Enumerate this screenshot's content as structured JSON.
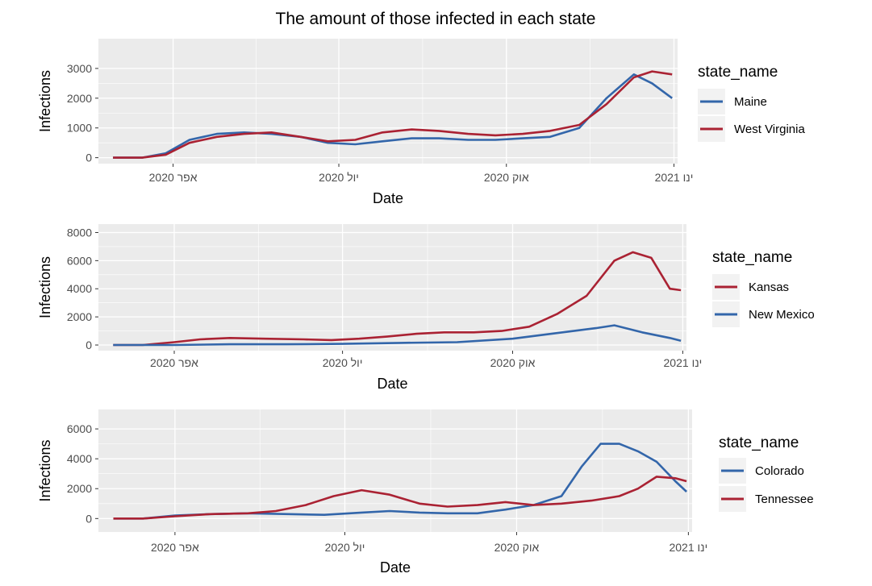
{
  "title": "The amount of those infected in each state",
  "x_tick_labels": [
    "2020 אפר",
    "2020 יול",
    "2020 אוק",
    "2021 ינו"
  ],
  "colors": {
    "blue": "#3366aa",
    "red": "#aa2233",
    "panel_bg": "#ebebeb",
    "grid": "#ffffff"
  },
  "chart_data": [
    {
      "type": "line",
      "xlabel": "Date",
      "ylabel": "Infections",
      "x_range": [
        "2020-02-20",
        "2021-01-03"
      ],
      "ylim": [
        -200,
        4000
      ],
      "y_ticks": [
        0,
        1000,
        2000,
        3000
      ],
      "legend": {
        "title": "state_name",
        "position": "right"
      },
      "series": [
        {
          "name": "Maine",
          "color": "#3366aa",
          "points": [
            [
              "2020-02-28",
              0
            ],
            [
              "2020-03-15",
              0
            ],
            [
              "2020-03-28",
              150
            ],
            [
              "2020-04-10",
              600
            ],
            [
              "2020-04-25",
              800
            ],
            [
              "2020-05-10",
              850
            ],
            [
              "2020-05-25",
              800
            ],
            [
              "2020-06-10",
              700
            ],
            [
              "2020-06-25",
              500
            ],
            [
              "2020-07-10",
              450
            ],
            [
              "2020-07-25",
              550
            ],
            [
              "2020-08-10",
              650
            ],
            [
              "2020-08-25",
              650
            ],
            [
              "2020-09-10",
              600
            ],
            [
              "2020-09-25",
              600
            ],
            [
              "2020-10-10",
              650
            ],
            [
              "2020-10-25",
              700
            ],
            [
              "2020-11-10",
              1000
            ],
            [
              "2020-11-25",
              2000
            ],
            [
              "2020-12-10",
              2800
            ],
            [
              "2020-12-20",
              2500
            ],
            [
              "2020-12-31",
              2000
            ]
          ]
        },
        {
          "name": "West Virginia",
          "color": "#aa2233",
          "points": [
            [
              "2020-02-28",
              0
            ],
            [
              "2020-03-15",
              0
            ],
            [
              "2020-03-28",
              100
            ],
            [
              "2020-04-10",
              500
            ],
            [
              "2020-04-25",
              700
            ],
            [
              "2020-05-10",
              800
            ],
            [
              "2020-05-25",
              850
            ],
            [
              "2020-06-10",
              700
            ],
            [
              "2020-06-25",
              550
            ],
            [
              "2020-07-10",
              600
            ],
            [
              "2020-07-25",
              850
            ],
            [
              "2020-08-10",
              950
            ],
            [
              "2020-08-25",
              900
            ],
            [
              "2020-09-10",
              800
            ],
            [
              "2020-09-25",
              750
            ],
            [
              "2020-10-10",
              800
            ],
            [
              "2020-10-25",
              900
            ],
            [
              "2020-11-10",
              1100
            ],
            [
              "2020-11-25",
              1800
            ],
            [
              "2020-12-10",
              2700
            ],
            [
              "2020-12-20",
              2900
            ],
            [
              "2020-12-31",
              2800
            ]
          ]
        }
      ]
    },
    {
      "type": "line",
      "xlabel": "Date",
      "ylabel": "Infections",
      "x_range": [
        "2020-02-20",
        "2021-01-03"
      ],
      "ylim": [
        -400,
        8600
      ],
      "y_ticks": [
        0,
        2000,
        4000,
        6000,
        8000
      ],
      "legend": {
        "title": "state_name",
        "position": "right"
      },
      "series": [
        {
          "name": "Kansas",
          "color": "#aa2233",
          "points": [
            [
              "2020-02-28",
              0
            ],
            [
              "2020-03-15",
              0
            ],
            [
              "2020-04-01",
              200
            ],
            [
              "2020-04-15",
              400
            ],
            [
              "2020-05-01",
              500
            ],
            [
              "2020-05-20",
              450
            ],
            [
              "2020-06-10",
              400
            ],
            [
              "2020-06-25",
              350
            ],
            [
              "2020-07-10",
              450
            ],
            [
              "2020-07-25",
              600
            ],
            [
              "2020-08-10",
              800
            ],
            [
              "2020-08-25",
              900
            ],
            [
              "2020-09-10",
              900
            ],
            [
              "2020-09-25",
              1000
            ],
            [
              "2020-10-10",
              1300
            ],
            [
              "2020-10-25",
              2200
            ],
            [
              "2020-11-10",
              3500
            ],
            [
              "2020-11-25",
              6000
            ],
            [
              "2020-12-05",
              6600
            ],
            [
              "2020-12-15",
              6200
            ],
            [
              "2020-12-25",
              4000
            ],
            [
              "2020-12-31",
              3900
            ]
          ]
        },
        {
          "name": "New Mexico",
          "color": "#3366aa",
          "points": [
            [
              "2020-02-28",
              0
            ],
            [
              "2020-04-01",
              0
            ],
            [
              "2020-05-01",
              50
            ],
            [
              "2020-06-01",
              50
            ],
            [
              "2020-07-01",
              80
            ],
            [
              "2020-08-01",
              150
            ],
            [
              "2020-09-01",
              200
            ],
            [
              "2020-10-01",
              450
            ],
            [
              "2020-10-25",
              850
            ],
            [
              "2020-11-15",
              1200
            ],
            [
              "2020-11-25",
              1400
            ],
            [
              "2020-12-10",
              900
            ],
            [
              "2020-12-25",
              500
            ],
            [
              "2020-12-31",
              300
            ]
          ]
        }
      ]
    },
    {
      "type": "line",
      "xlabel": "Date",
      "ylabel": "Infections",
      "x_range": [
        "2020-02-20",
        "2021-01-03"
      ],
      "ylim": [
        -900,
        7300
      ],
      "y_ticks": [
        0,
        2000,
        4000,
        6000
      ],
      "legend": {
        "title": "state_name",
        "position": "right"
      },
      "series": [
        {
          "name": "Colorado",
          "color": "#3366aa",
          "points": [
            [
              "2020-02-28",
              0
            ],
            [
              "2020-03-15",
              0
            ],
            [
              "2020-04-01",
              200
            ],
            [
              "2020-04-20",
              300
            ],
            [
              "2020-05-10",
              350
            ],
            [
              "2020-06-01",
              300
            ],
            [
              "2020-06-20",
              250
            ],
            [
              "2020-07-10",
              400
            ],
            [
              "2020-07-25",
              500
            ],
            [
              "2020-08-10",
              400
            ],
            [
              "2020-08-25",
              350
            ],
            [
              "2020-09-10",
              350
            ],
            [
              "2020-09-25",
              600
            ],
            [
              "2020-10-10",
              900
            ],
            [
              "2020-10-25",
              1500
            ],
            [
              "2020-11-05",
              3500
            ],
            [
              "2020-11-15",
              5000
            ],
            [
              "2020-11-25",
              5000
            ],
            [
              "2020-12-05",
              4500
            ],
            [
              "2020-12-15",
              3800
            ],
            [
              "2020-12-25",
              2500
            ],
            [
              "2020-12-31",
              1800
            ]
          ]
        },
        {
          "name": "Tennessee",
          "color": "#aa2233",
          "points": [
            [
              "2020-02-28",
              0
            ],
            [
              "2020-03-15",
              0
            ],
            [
              "2020-04-01",
              150
            ],
            [
              "2020-04-20",
              300
            ],
            [
              "2020-05-10",
              350
            ],
            [
              "2020-05-25",
              500
            ],
            [
              "2020-06-10",
              900
            ],
            [
              "2020-06-25",
              1500
            ],
            [
              "2020-07-10",
              1900
            ],
            [
              "2020-07-25",
              1600
            ],
            [
              "2020-08-10",
              1000
            ],
            [
              "2020-08-25",
              800
            ],
            [
              "2020-09-10",
              900
            ],
            [
              "2020-09-25",
              1100
            ],
            [
              "2020-10-10",
              900
            ],
            [
              "2020-10-25",
              1000
            ],
            [
              "2020-11-10",
              1200
            ],
            [
              "2020-11-25",
              1500
            ],
            [
              "2020-12-05",
              2000
            ],
            [
              "2020-12-15",
              2800
            ],
            [
              "2020-12-25",
              2700
            ],
            [
              "2020-12-31",
              2500
            ]
          ]
        }
      ]
    }
  ]
}
